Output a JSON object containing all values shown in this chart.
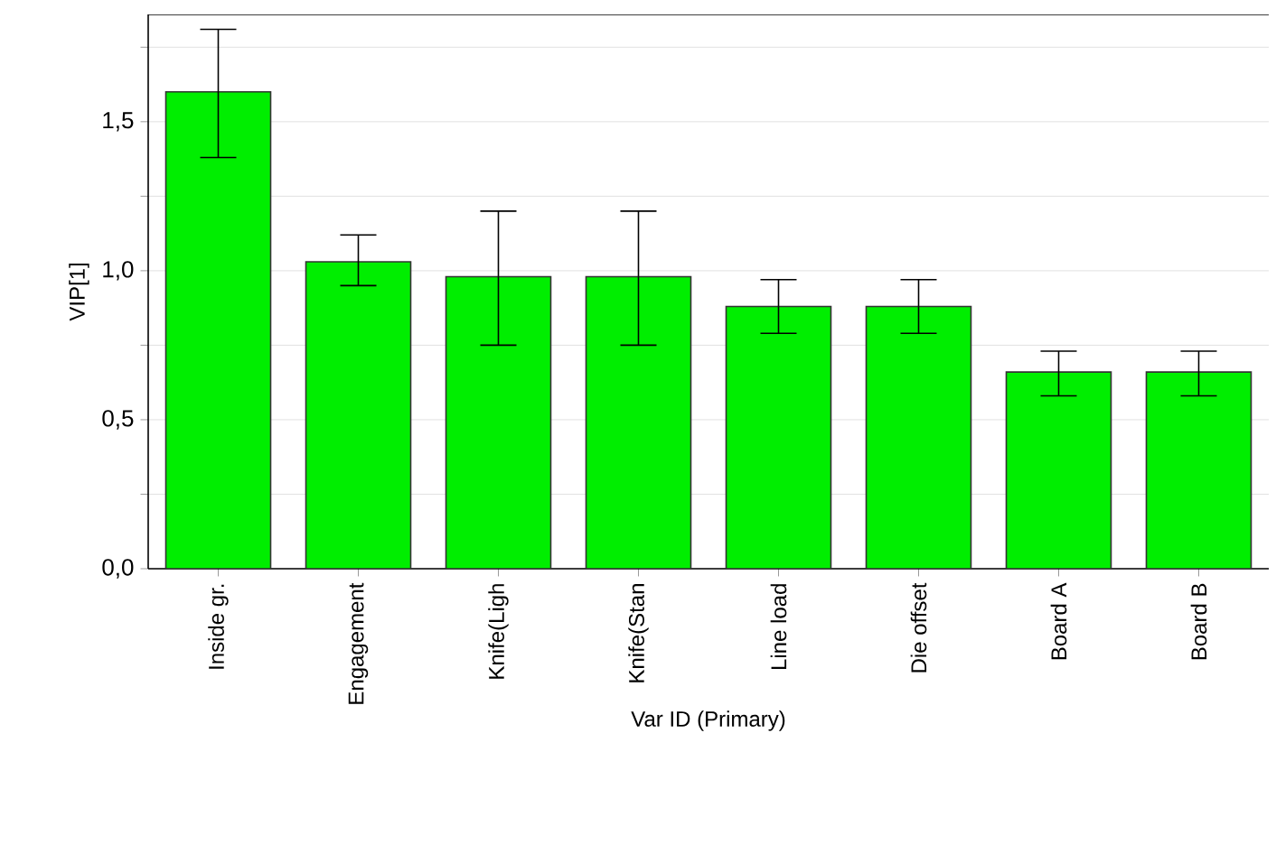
{
  "chart_data": {
    "type": "bar",
    "xlabel": "Var ID (Primary)",
    "ylabel": "VIP[1]",
    "categories": [
      "Inside gr.",
      "Engagement",
      "Knife(Ligh",
      "Knife(Stan",
      "Line load",
      "Die offset",
      "Board A",
      "Board B"
    ],
    "values": [
      1.6,
      1.03,
      0.98,
      0.98,
      0.88,
      0.88,
      0.66,
      0.66
    ],
    "errors": [
      [
        1.38,
        1.81
      ],
      [
        0.95,
        1.12
      ],
      [
        0.75,
        1.2
      ],
      [
        0.75,
        1.2
      ],
      [
        0.79,
        0.97
      ],
      [
        0.79,
        0.97
      ],
      [
        0.58,
        0.73
      ],
      [
        0.58,
        0.73
      ]
    ],
    "color": "#00ee00",
    "ylim": [
      0,
      1.86
    ],
    "yticks": [
      {
        "value": 0,
        "label": "0,0"
      },
      {
        "value": 0.25,
        "label": null
      },
      {
        "value": 0.5,
        "label": "0,5"
      },
      {
        "value": 0.75,
        "label": null
      },
      {
        "value": 1.0,
        "label": "1,0"
      },
      {
        "value": 1.25,
        "label": null
      },
      {
        "value": 1.5,
        "label": "1,5"
      },
      {
        "value": 1.75,
        "label": null
      }
    ],
    "grid": "y"
  }
}
